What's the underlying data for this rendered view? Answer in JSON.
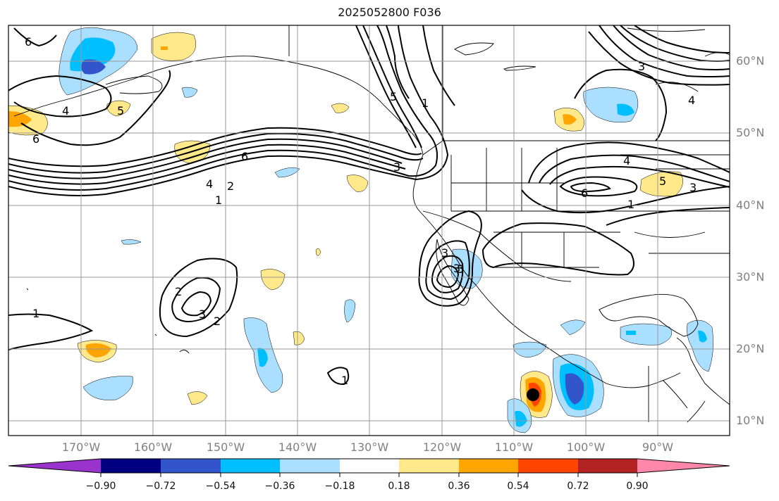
{
  "title": "2025052800 F036",
  "lat_labels": [
    "60°N",
    "50°N",
    "40°N",
    "30°N",
    "20°N",
    "10°N"
  ],
  "lon_labels": [
    "170°W",
    "160°W",
    "150°W",
    "140°W",
    "130°W",
    "120°W",
    "110°W",
    "100°W",
    "90°W"
  ],
  "colorbar": {
    "colors": [
      "#9933cc",
      "#000080",
      "#3355cc",
      "#00bfff",
      "#aadfff",
      "#ffffff",
      "#ffe98a",
      "#ffa500",
      "#ff4500",
      "#b22222",
      "#ff88aa"
    ],
    "labels": [
      "−0.90",
      "−0.72",
      "−0.54",
      "−0.36",
      "−0.18",
      "0.18",
      "0.36",
      "0.54",
      "0.72",
      "0.90"
    ]
  },
  "contour_labels": [
    "6",
    "4",
    "5",
    "6",
    "6",
    "4",
    "1",
    "2",
    "3",
    "5",
    "1",
    "3",
    "1",
    "2",
    "3",
    "4",
    "6",
    "5",
    "3",
    "1",
    "2",
    "3",
    "3",
    "1",
    "4",
    "5"
  ],
  "storm_marker": "black-dot"
}
